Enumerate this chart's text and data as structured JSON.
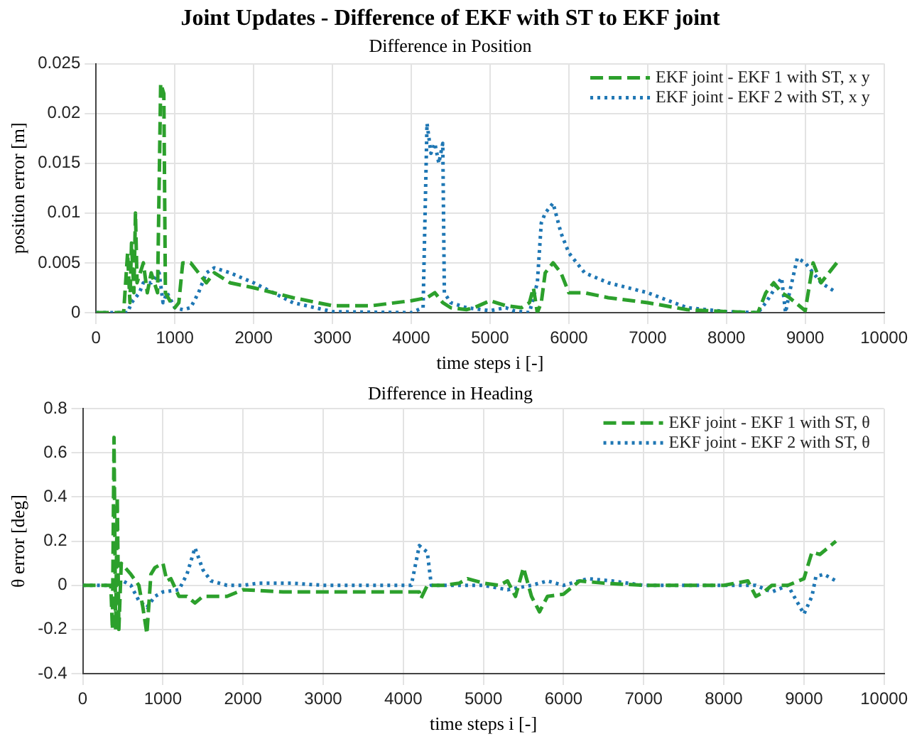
{
  "chart_data": [
    {
      "type": "line",
      "title": "Joint Updates - Difference of EKF with ST to EKF joint",
      "subtitle": "Difference in Position",
      "xlabel": "time steps i [-]",
      "ylabel": "position error [m]",
      "xlim": [
        0,
        10000
      ],
      "xticks": [
        0,
        1000,
        2000,
        3000,
        4000,
        5000,
        6000,
        7000,
        8000,
        9000,
        10000
      ],
      "ylim": [
        0,
        0.025
      ],
      "yticks": [
        0,
        0.005,
        0.01,
        0.015,
        0.02,
        0.025
      ],
      "grid": true,
      "legend": "top right",
      "marker": "none",
      "series": [
        {
          "name": "EKF joint - EKF 1 with ST, x y",
          "color": "#2ca02c",
          "line_style": "dashed",
          "x": [
            0,
            350,
            400,
            430,
            450,
            480,
            500,
            520,
            600,
            650,
            700,
            780,
            820,
            860,
            880,
            950,
            1000,
            1050,
            1100,
            1200,
            1300,
            1400,
            1500,
            1700,
            2000,
            2500,
            3000,
            3500,
            4000,
            4200,
            4300,
            4400,
            4500,
            4700,
            4800,
            5000,
            5200,
            5400,
            5500,
            5550,
            5600,
            5650,
            5700,
            5800,
            5900,
            6000,
            6200,
            6500,
            7000,
            7500,
            8000,
            8400,
            8500,
            8600,
            8700,
            8800,
            9000,
            9100,
            9200,
            9300,
            9400
          ],
          "values": [
            0,
            0,
            0.006,
            0.001,
            0.007,
            0.002,
            0.01,
            0.003,
            0.005,
            0.002,
            0.004,
            0.002,
            0.023,
            0.022,
            0.002,
            0.001,
            0.0005,
            0.001,
            0.005,
            0.005,
            0.004,
            0.003,
            0.004,
            0.003,
            0.0025,
            0.0015,
            0.0007,
            0.0007,
            0.0012,
            0.0015,
            0.002,
            0.001,
            0.0005,
            0.0003,
            0.0005,
            0.0012,
            0.0007,
            0.0005,
            0.001,
            0.0025,
            0,
            0.001,
            0.004,
            0.005,
            0.004,
            0.002,
            0.002,
            0.0015,
            0.001,
            0.0003,
            0.0001,
            0,
            0.002,
            0.003,
            0.002,
            0.0015,
            0.0002,
            0.005,
            0.003,
            0.004,
            0.005
          ]
        },
        {
          "name": "EKF joint - EKF 2 with ST, x y",
          "color": "#1f77b4",
          "line_style": "dotted",
          "x": [
            0,
            400,
            450,
            550,
            600,
            700,
            800,
            850,
            900,
            1000,
            1100,
            1200,
            1300,
            1400,
            1500,
            1700,
            2000,
            2500,
            3000,
            4000,
            4150,
            4200,
            4250,
            4300,
            4350,
            4400,
            4420,
            4500,
            4700,
            5000,
            5200,
            5300,
            5500,
            5600,
            5650,
            5700,
            5800,
            5900,
            6000,
            6200,
            6500,
            7000,
            7500,
            8000,
            8400,
            8500,
            8700,
            8750,
            8800,
            8900,
            9000,
            9200,
            9400
          ],
          "values": [
            0,
            0,
            0.001,
            0.002,
            0.003,
            0.003,
            0.004,
            0.001,
            0.002,
            0.0005,
            0.0003,
            0.0005,
            0.002,
            0.004,
            0.0045,
            0.004,
            0.003,
            0.001,
            0.0001,
            0,
            0.0005,
            0.019,
            0.016,
            0.017,
            0.015,
            0.017,
            0.002,
            0.001,
            0.0005,
            0.0002,
            0.0005,
            0.0002,
            0,
            0.003,
            0.009,
            0.01,
            0.011,
            0.008,
            0.006,
            0.004,
            0.003,
            0.002,
            0.0005,
            0.0001,
            0,
            0.001,
            0.0035,
            0,
            0.002,
            0.0055,
            0.005,
            0.003,
            0.002
          ]
        }
      ]
    },
    {
      "type": "line",
      "title": "Difference in Heading",
      "xlabel": "time steps i [-]",
      "ylabel": "θ error [deg]",
      "xlim": [
        0,
        10000
      ],
      "xticks": [
        0,
        1000,
        2000,
        3000,
        4000,
        5000,
        6000,
        7000,
        8000,
        9000,
        10000
      ],
      "ylim": [
        -0.4,
        0.8
      ],
      "yticks": [
        -0.4,
        -0.2,
        0,
        0.2,
        0.4,
        0.6,
        0.8
      ],
      "grid": true,
      "legend": "top right",
      "marker": "none",
      "series": [
        {
          "name": "EKF joint - EKF 1 with ST, θ",
          "color": "#2ca02c",
          "line_style": "dashed",
          "x": [
            0,
            350,
            370,
            390,
            410,
            430,
            450,
            480,
            600,
            700,
            750,
            800,
            850,
            900,
            1000,
            1050,
            1100,
            1200,
            1300,
            1400,
            1500,
            1800,
            2000,
            2500,
            4000,
            4200,
            4220,
            4300,
            4500,
            4700,
            4800,
            5000,
            5200,
            5300,
            5400,
            5500,
            5600,
            5700,
            5800,
            6000,
            6200,
            6500,
            7000,
            8000,
            8300,
            8400,
            8500,
            8600,
            8800,
            9000,
            9100,
            9200,
            9400
          ],
          "values": [
            0,
            0,
            -0.2,
            0.67,
            -0.2,
            0.4,
            -0.2,
            0.1,
            0.05,
            0,
            -0.1,
            -0.22,
            0.05,
            0.08,
            0.1,
            0.02,
            0.03,
            -0.05,
            -0.05,
            -0.08,
            -0.05,
            -0.05,
            -0.02,
            -0.03,
            -0.03,
            -0.03,
            -0.06,
            0,
            0,
            0.01,
            0.03,
            0.01,
            0,
            0.02,
            -0.05,
            0.08,
            -0.05,
            -0.12,
            -0.05,
            -0.04,
            0.02,
            0.01,
            0,
            0,
            0.02,
            -0.05,
            -0.03,
            0,
            0,
            0.03,
            0.15,
            0.14,
            0.2
          ]
        },
        {
          "name": "EKF joint - EKF 2 with ST, θ",
          "color": "#1f77b4",
          "line_style": "dotted",
          "x": [
            0,
            400,
            500,
            600,
            700,
            800,
            900,
            1000,
            1200,
            1300,
            1400,
            1500,
            1600,
            1800,
            2000,
            2200,
            2600,
            3000,
            4100,
            4200,
            4300,
            4350,
            4500,
            5000,
            5300,
            5600,
            5800,
            6000,
            6300,
            6600,
            7000,
            8400,
            8600,
            8800,
            9000,
            9100,
            9150,
            9250,
            9400
          ],
          "values": [
            0,
            0,
            0.02,
            0,
            -0.07,
            -0.1,
            -0.05,
            -0.03,
            -0.02,
            0.05,
            0.17,
            0.07,
            0.02,
            0,
            0,
            0.01,
            0.01,
            0,
            0,
            0.18,
            0.15,
            0,
            0,
            0,
            -0.02,
            0,
            0.02,
            0,
            0.03,
            0.02,
            0,
            0,
            -0.03,
            0,
            -0.13,
            -0.05,
            0.04,
            0.05,
            0.02
          ]
        }
      ]
    }
  ]
}
